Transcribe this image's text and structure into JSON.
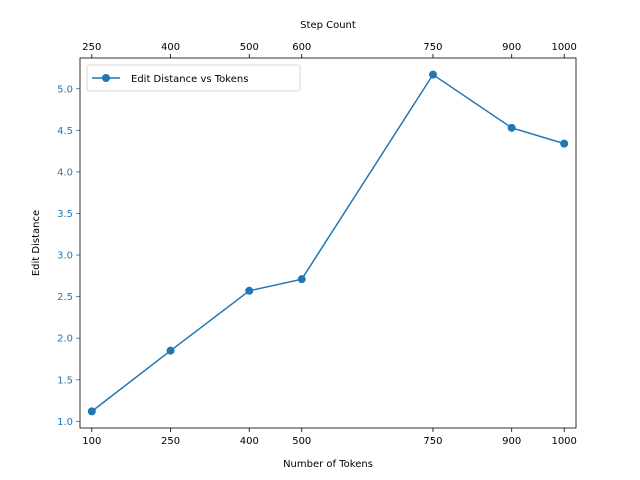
{
  "chart_data": {
    "type": "line",
    "title": "",
    "xlabel": "Number of Tokens",
    "xlabel_top": "Step Count",
    "ylabel": "Edit Distance",
    "x": [
      100,
      250,
      400,
      500,
      750,
      900,
      1000
    ],
    "x_top": [
      250,
      400,
      500,
      600,
      750,
      900,
      1000
    ],
    "series": [
      {
        "name": "Edit Distance vs Tokens",
        "color": "#1f77b4",
        "values": [
          1.12,
          1.85,
          2.57,
          2.71,
          5.17,
          4.53,
          4.34
        ]
      }
    ],
    "xlim": [
      77.5,
      1022.5
    ],
    "ylim": [
      0.92,
      5.37
    ],
    "yticks": [
      1.0,
      1.5,
      2.0,
      2.5,
      3.0,
      3.5,
      4.0,
      4.5,
      5.0
    ],
    "ytick_labels": [
      "1.0",
      "1.5",
      "2.0",
      "2.5",
      "3.0",
      "3.5",
      "4.0",
      "4.5",
      "5.0"
    ],
    "grid": false,
    "legend": "upper-left",
    "ylabel_color": "#1f77b4"
  }
}
